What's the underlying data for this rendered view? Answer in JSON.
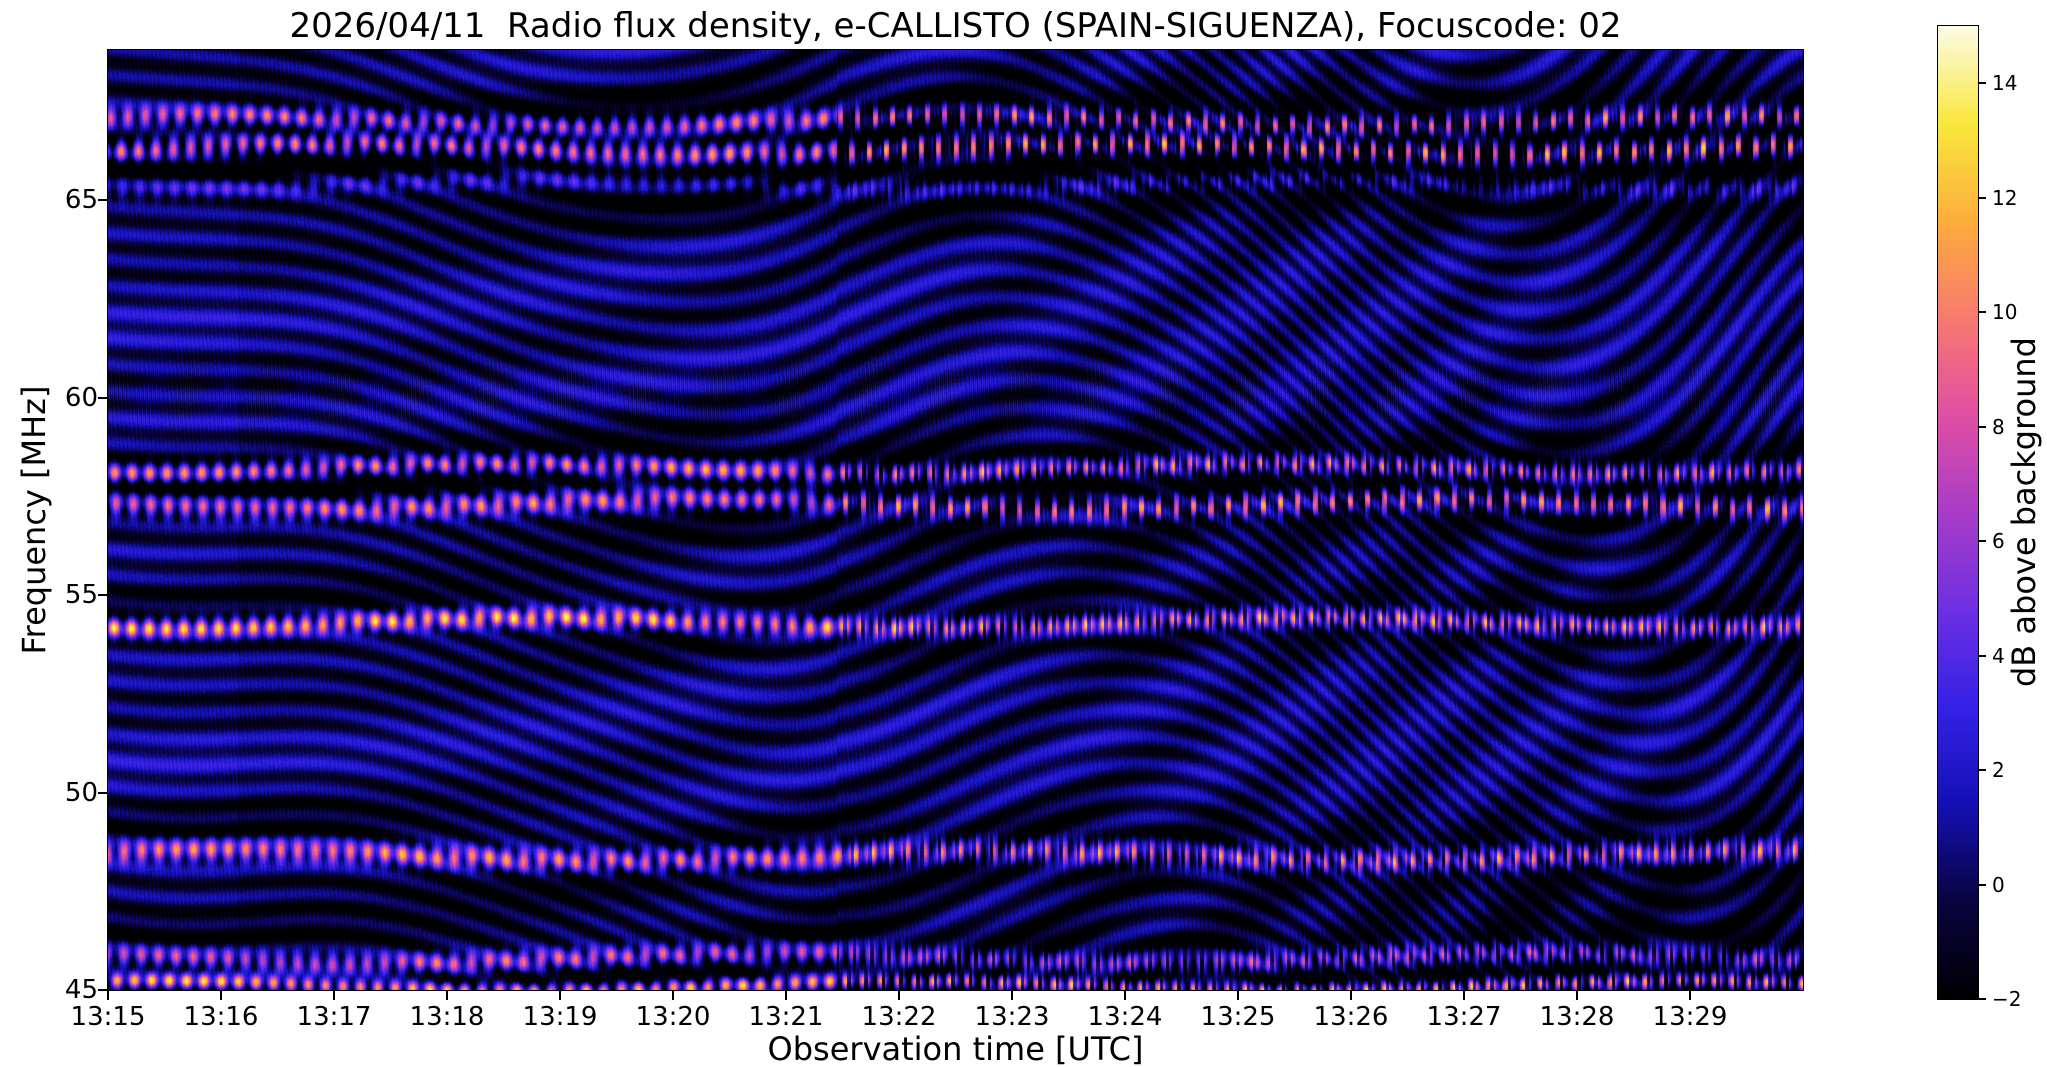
{
  "figure": {
    "title": "2026/04/11  Radio flux density, e-CALLISTO (SPAIN-SIGUENZA), Focuscode: 02",
    "xlabel": "Observation time [UTC]",
    "ylabel": "Frequency [MHz]",
    "colorbar_label": "dB above background"
  },
  "observation": {
    "date": "2026/04/11",
    "quantity": "Radio flux density",
    "network": "e-CALLISTO",
    "station": "SPAIN-SIGUENZA",
    "focuscode": "02"
  },
  "chart_data": {
    "type": "heatmap",
    "title": "2026/04/11  Radio flux density, e-CALLISTO (SPAIN-SIGUENZA), Focuscode: 02",
    "xlabel": "Observation time [UTC]",
    "ylabel": "Frequency [MHz]",
    "x_ticks": [
      "13:15",
      "13:16",
      "13:17",
      "13:18",
      "13:19",
      "13:20",
      "13:21",
      "13:22",
      "13:23",
      "13:24",
      "13:25",
      "13:26",
      "13:27",
      "13:28",
      "13:29"
    ],
    "x_range_minutes": [
      0,
      15
    ],
    "x_start": "13:15",
    "x_end": "13:30",
    "y_ticks": [
      45,
      50,
      55,
      60,
      65
    ],
    "ylim": [
      45,
      68.8
    ],
    "grid": false,
    "legend": "none",
    "colorbar": {
      "label": "dB above background",
      "ticks": [
        -2,
        0,
        2,
        4,
        6,
        8,
        10,
        12,
        14
      ],
      "vmin": -2,
      "vmax": 15,
      "position": "right"
    },
    "colormap": [
      [
        0.0,
        "#000003"
      ],
      [
        0.1,
        "#0a0440"
      ],
      [
        0.2,
        "#1410b4"
      ],
      [
        0.3,
        "#3522e8"
      ],
      [
        0.4,
        "#6e2fe2"
      ],
      [
        0.5,
        "#a93cc8"
      ],
      [
        0.6,
        "#e04fa4"
      ],
      [
        0.7,
        "#f97a70"
      ],
      [
        0.8,
        "#fdae3c"
      ],
      [
        0.9,
        "#f9e83c"
      ],
      [
        1.0,
        "#fdfce5"
      ]
    ],
    "emission_bands_mhz": [
      {
        "f": 67.0,
        "w": 0.28,
        "a": 10
      },
      {
        "f": 66.3,
        "w": 0.3,
        "a": 12
      },
      {
        "f": 65.4,
        "w": 0.3,
        "a": 4
      },
      {
        "f": 58.2,
        "w": 0.26,
        "a": 11
      },
      {
        "f": 57.3,
        "w": 0.3,
        "a": 10
      },
      {
        "f": 54.3,
        "w": 0.26,
        "a": 12
      },
      {
        "f": 48.4,
        "w": 0.3,
        "a": 10
      },
      {
        "f": 45.8,
        "w": 0.28,
        "a": 9
      },
      {
        "f": 45.1,
        "w": 0.2,
        "a": 13
      }
    ],
    "description": "Dynamic radio spectrogram (45-68.8 MHz, 13:15-13:30 UTC). Mostly dark-blue background (-2 to 3 dB) crossed by diagonal interference fringes; bright pink/orange/yellow emission lanes near 67, 66.3, 58.2, 57.3, 54.3, 48.4, 45.8 and 45.1 MHz reaching 10-15 dB, which become dashed/periodic after about 13:21:30; dark absorption lanes adjoin each bright band; fine vertical time-modulation texture throughout."
  }
}
